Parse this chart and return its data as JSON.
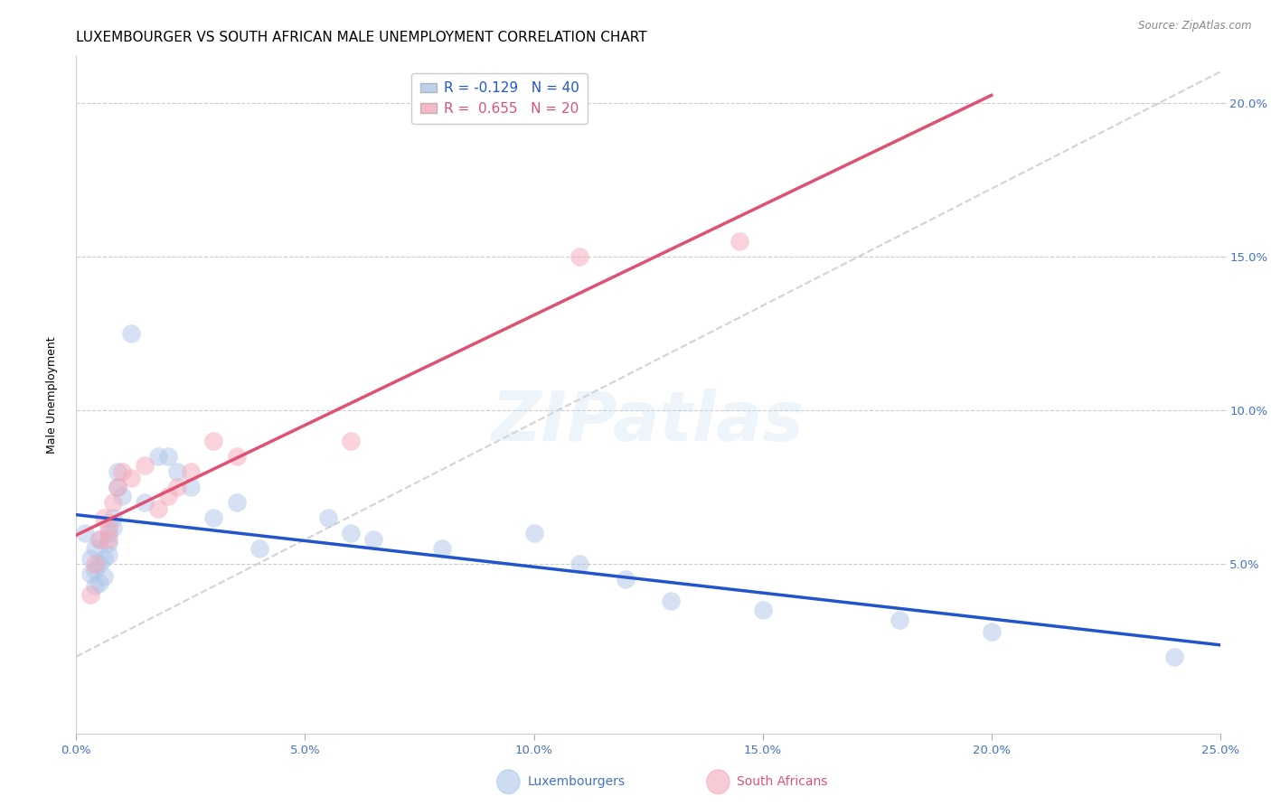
{
  "title": "LUXEMBOURGER VS SOUTH AFRICAN MALE UNEMPLOYMENT CORRELATION CHART",
  "source": "Source: ZipAtlas.com",
  "ylabel": "Male Unemployment",
  "xlim": [
    0.0,
    0.25
  ],
  "ylim": [
    -0.005,
    0.215
  ],
  "xticks": [
    0.0,
    0.05,
    0.1,
    0.15,
    0.2,
    0.25
  ],
  "yticks": [
    0.05,
    0.1,
    0.15,
    0.2
  ],
  "xtick_labels": [
    "0.0%",
    "5.0%",
    "10.0%",
    "15.0%",
    "20.0%",
    "25.0%"
  ],
  "right_ytick_labels": [
    "5.0%",
    "10.0%",
    "15.0%",
    "20.0%"
  ],
  "legend_r1": "R = -0.129   N = 40",
  "legend_r2": "R =  0.655   N = 20",
  "lux_points": [
    [
      0.002,
      0.06
    ],
    [
      0.003,
      0.052
    ],
    [
      0.003,
      0.047
    ],
    [
      0.004,
      0.055
    ],
    [
      0.004,
      0.048
    ],
    [
      0.004,
      0.043
    ],
    [
      0.005,
      0.058
    ],
    [
      0.005,
      0.05
    ],
    [
      0.005,
      0.044
    ],
    [
      0.006,
      0.052
    ],
    [
      0.006,
      0.046
    ],
    [
      0.007,
      0.06
    ],
    [
      0.007,
      0.057
    ],
    [
      0.007,
      0.053
    ],
    [
      0.008,
      0.065
    ],
    [
      0.008,
      0.062
    ],
    [
      0.009,
      0.08
    ],
    [
      0.009,
      0.075
    ],
    [
      0.01,
      0.072
    ],
    [
      0.012,
      0.125
    ],
    [
      0.015,
      0.07
    ],
    [
      0.018,
      0.085
    ],
    [
      0.02,
      0.085
    ],
    [
      0.022,
      0.08
    ],
    [
      0.025,
      0.075
    ],
    [
      0.03,
      0.065
    ],
    [
      0.035,
      0.07
    ],
    [
      0.04,
      0.055
    ],
    [
      0.055,
      0.065
    ],
    [
      0.06,
      0.06
    ],
    [
      0.065,
      0.058
    ],
    [
      0.08,
      0.055
    ],
    [
      0.1,
      0.06
    ],
    [
      0.11,
      0.05
    ],
    [
      0.12,
      0.045
    ],
    [
      0.13,
      0.038
    ],
    [
      0.15,
      0.035
    ],
    [
      0.18,
      0.032
    ],
    [
      0.2,
      0.028
    ],
    [
      0.24,
      0.02
    ]
  ],
  "sa_points": [
    [
      0.003,
      0.04
    ],
    [
      0.004,
      0.05
    ],
    [
      0.005,
      0.058
    ],
    [
      0.006,
      0.065
    ],
    [
      0.007,
      0.062
    ],
    [
      0.007,
      0.058
    ],
    [
      0.008,
      0.07
    ],
    [
      0.009,
      0.075
    ],
    [
      0.01,
      0.08
    ],
    [
      0.012,
      0.078
    ],
    [
      0.015,
      0.082
    ],
    [
      0.018,
      0.068
    ],
    [
      0.02,
      0.072
    ],
    [
      0.022,
      0.075
    ],
    [
      0.025,
      0.08
    ],
    [
      0.03,
      0.09
    ],
    [
      0.035,
      0.085
    ],
    [
      0.06,
      0.09
    ],
    [
      0.11,
      0.15
    ],
    [
      0.145,
      0.155
    ]
  ],
  "lux_color": "#aec6e8",
  "sa_color": "#f4a7b9",
  "lux_line_color": "#2255cc",
  "sa_line_color": "#e05070",
  "diag_line_color": "#c8c8c8",
  "title_fontsize": 11,
  "axis_label_fontsize": 9,
  "tick_fontsize": 9.5,
  "watermark_text": "ZIPatlas",
  "background_color": "#ffffff",
  "bottom_legend_lux": "Luxembourgers",
  "bottom_legend_sa": "South Africans"
}
